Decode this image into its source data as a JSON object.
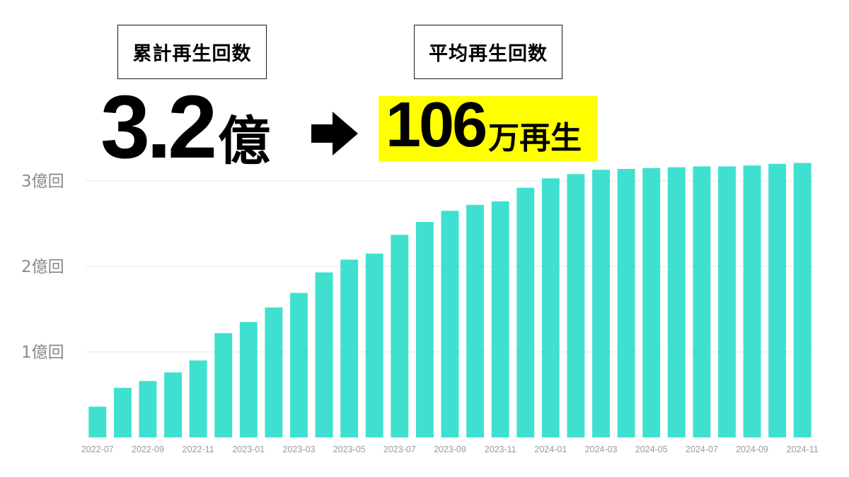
{
  "header": {
    "total_label": "累計再生回数",
    "avg_label": "平均再生回数",
    "total_value": "3.2",
    "total_unit": "億",
    "avg_value": "106",
    "avg_unit": "万再生",
    "arrow_icon": "right-arrow-icon",
    "highlight_color": "#ffff00"
  },
  "chart_data": {
    "type": "bar",
    "title": "",
    "xlabel": "",
    "ylabel": "",
    "ylim": [
      0,
      3.3
    ],
    "grid": true,
    "bar_color": "#40e0d0",
    "categories": [
      "2022-07",
      "2022-08",
      "2022-09",
      "2022-10",
      "2022-11",
      "2022-12",
      "2023-01",
      "2023-02",
      "2023-03",
      "2023-04",
      "2023-05",
      "2023-06",
      "2023-07",
      "2023-08",
      "2023-09",
      "2023-10",
      "2023-11",
      "2023-12",
      "2024-01",
      "2024-02",
      "2024-03",
      "2024-04",
      "2024-05",
      "2024-06",
      "2024-07",
      "2024-08",
      "2024-09",
      "2024-10",
      "2024-11"
    ],
    "values": [
      0.36,
      0.58,
      0.66,
      0.76,
      0.9,
      1.22,
      1.35,
      1.52,
      1.69,
      1.93,
      2.08,
      2.15,
      2.37,
      2.52,
      2.65,
      2.72,
      2.76,
      2.92,
      3.03,
      3.08,
      3.13,
      3.14,
      3.15,
      3.16,
      3.17,
      3.17,
      3.18,
      3.2,
      3.21
    ],
    "yticks": [
      {
        "value": 1,
        "label": "1億回"
      },
      {
        "value": 2,
        "label": "2億回"
      },
      {
        "value": 3,
        "label": "3億回"
      }
    ],
    "xtick_labels": [
      "2022-07",
      "2022-09",
      "2022-11",
      "2023-01",
      "2023-03",
      "2023-05",
      "2023-07",
      "2023-09",
      "2023-11",
      "2024-01",
      "2024-03",
      "2024-05",
      "2024-07",
      "2024-09",
      "2024-11"
    ]
  }
}
